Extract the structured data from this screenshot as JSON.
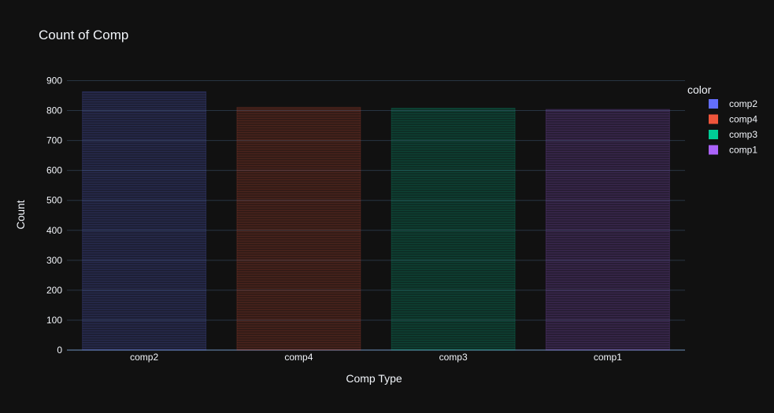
{
  "chart_data": {
    "type": "bar",
    "title": "Count of Comp",
    "xlabel": "Comp Type",
    "ylabel": "Count",
    "categories": [
      "comp2",
      "comp4",
      "comp3",
      "comp1"
    ],
    "values": [
      863,
      811,
      808,
      804
    ],
    "ylim": [
      0,
      900
    ],
    "yticks": [
      0,
      100,
      200,
      300,
      400,
      500,
      600,
      700,
      800,
      900
    ],
    "grid": true,
    "legend": {
      "title": "color",
      "placement": "right",
      "entries": [
        {
          "name": "comp2",
          "color": "#636efa"
        },
        {
          "name": "comp4",
          "color": "#ef553b"
        },
        {
          "name": "comp3",
          "color": "#00cc96"
        },
        {
          "name": "comp1",
          "color": "#ab63fa"
        }
      ]
    },
    "bar_colors": [
      "#636efa",
      "#ef553b",
      "#00cc96",
      "#ab63fa"
    ]
  },
  "theme": {
    "background": "#111111",
    "gridline": "#283442",
    "axis_line": "#506784",
    "text": "#f2f5fa"
  }
}
